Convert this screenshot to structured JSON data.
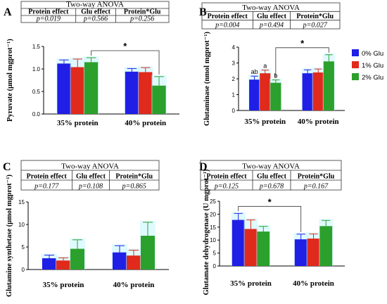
{
  "legend": {
    "items": [
      {
        "label": "0% Glu",
        "color": "#1f1fe6"
      },
      {
        "label": "1% Glu",
        "color": "#e02a1c"
      },
      {
        "label": "2% Glu",
        "color": "#2ca02c"
      }
    ]
  },
  "chart_data": [
    {
      "panel": "A",
      "type": "bar",
      "anova": {
        "title": "Two-way ANOVA",
        "headers": [
          "Protein effect",
          "Glu effect",
          "Protein*Glu"
        ],
        "values": [
          "p=0.019",
          "p=0.566",
          "p=0.256"
        ]
      },
      "categories": [
        "35% protein",
        "40% protein"
      ],
      "series": [
        {
          "name": "0% Glu",
          "values": [
            1.12,
            0.94
          ],
          "errors": [
            0.08,
            0.07
          ]
        },
        {
          "name": "1% Glu",
          "values": [
            1.04,
            0.93
          ],
          "errors": [
            0.18,
            0.1
          ]
        },
        {
          "name": "2% Glu",
          "values": [
            1.15,
            0.63
          ],
          "errors": [
            0.1,
            0.2
          ]
        }
      ],
      "ylabel": "Pyruvate (μmol mgprot⁻¹)",
      "ylim": [
        0,
        1.5
      ],
      "yticks": [
        "0.0",
        "0.5",
        "1.0",
        "1.5"
      ],
      "letters": [],
      "significance": {
        "label": "*",
        "from": [
          0,
          2
        ],
        "to": [
          1,
          2
        ]
      }
    },
    {
      "panel": "B",
      "type": "bar",
      "anova": {
        "title": "Two-way ANOVA",
        "headers": [
          "Protein effect",
          "Glu effect",
          "Protein*Glu"
        ],
        "values": [
          "p=0.004",
          "p=0.494",
          "p=0.027"
        ]
      },
      "categories": [
        "35% protein",
        "40% protein"
      ],
      "series": [
        {
          "name": "0% Glu",
          "values": [
            1.95,
            2.35
          ],
          "errors": [
            0.22,
            0.22
          ]
        },
        {
          "name": "1% Glu",
          "values": [
            2.35,
            2.4
          ],
          "errors": [
            0.2,
            0.22
          ]
        },
        {
          "name": "2% Glu",
          "values": [
            1.75,
            3.1
          ],
          "errors": [
            0.18,
            0.42
          ]
        }
      ],
      "ylabel": "Glutaminase (nmol mgprot⁻¹)",
      "ylim": [
        0,
        4
      ],
      "yticks": [
        "0",
        "1",
        "2",
        "3",
        "4"
      ],
      "letters": [
        {
          "category": 0,
          "series": 0,
          "text": "ab"
        },
        {
          "category": 0,
          "series": 1,
          "text": "a"
        },
        {
          "category": 0,
          "series": 2,
          "text": "b"
        }
      ],
      "significance": {
        "label": "*",
        "from": [
          0,
          2
        ],
        "to": [
          1,
          2
        ]
      }
    },
    {
      "panel": "C",
      "type": "bar",
      "anova": {
        "title": "Two-way ANOVA",
        "headers": [
          "Protein effect",
          "Glu effect",
          "Protein*Glu"
        ],
        "values": [
          "p=0.177",
          "p=0.108",
          "p=0.865"
        ]
      },
      "categories": [
        "35% protein",
        "40% protein"
      ],
      "series": [
        {
          "name": "0% Glu",
          "values": [
            2.5,
            3.8
          ],
          "errors": [
            0.7,
            1.5
          ]
        },
        {
          "name": "1% Glu",
          "values": [
            2.0,
            3.1
          ],
          "errors": [
            0.6,
            1.2
          ]
        },
        {
          "name": "2% Glu",
          "values": [
            4.6,
            7.5
          ],
          "errors": [
            2.0,
            3.0
          ]
        }
      ],
      "ylabel": "Glutamine synthetase (μmol mgprot⁻¹)",
      "ylim": [
        0,
        15
      ],
      "yticks": [
        "0",
        "5",
        "10",
        "15"
      ],
      "letters": [],
      "significance": null
    },
    {
      "panel": "D",
      "type": "bar",
      "anova": {
        "title": "Two-way ANOVA",
        "headers": [
          "Protein effect",
          "Glu effect",
          "Protein*Glu"
        ],
        "values": [
          "p=0.125",
          "p=0.678",
          "p=0.167"
        ]
      },
      "categories": [
        "35% protein",
        "40% protein"
      ],
      "series": [
        {
          "name": "0% Glu",
          "values": [
            17.8,
            10.3
          ],
          "errors": [
            2.5,
            2.0
          ]
        },
        {
          "name": "1% Glu",
          "values": [
            14.3,
            10.6
          ],
          "errors": [
            3.5,
            1.8
          ]
        },
        {
          "name": "2% Glu",
          "values": [
            13.3,
            15.4
          ],
          "errors": [
            2.0,
            2.2
          ]
        }
      ],
      "ylabel": "Glutamate dehydrogenase (U mgprot⁻¹)",
      "ylim": [
        0,
        25
      ],
      "yticks": [
        "0",
        "5",
        "10",
        "15",
        "20",
        "25"
      ],
      "letters": [],
      "significance": {
        "label": "*",
        "from": [
          0,
          0
        ],
        "to": [
          1,
          0
        ]
      }
    }
  ]
}
